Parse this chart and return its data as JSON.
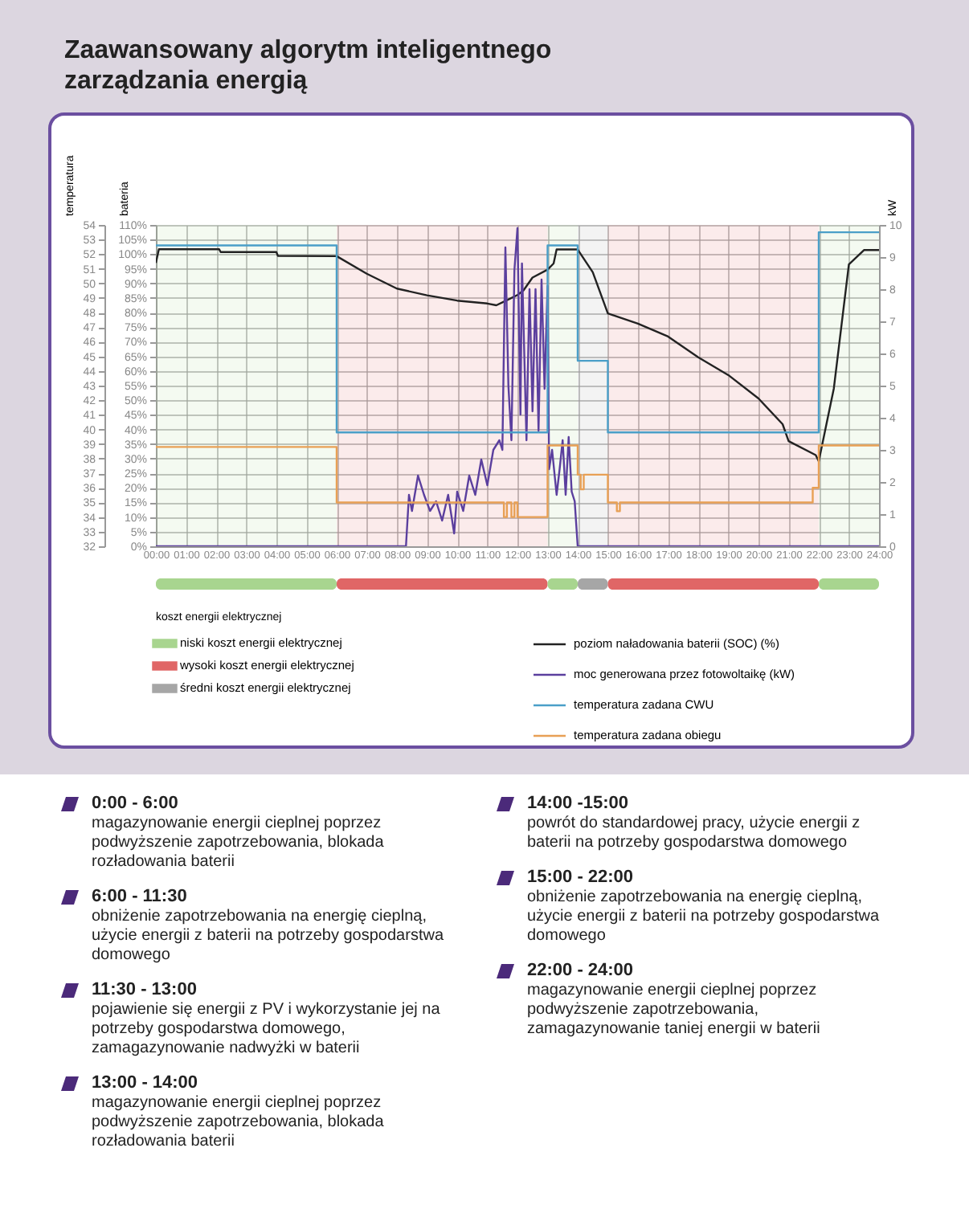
{
  "chart_data": {
    "type": "line",
    "title": "Zaawansowany algorytm inteligentnego zarządzania energią",
    "ylabel": "temperatura",
    "y2label": "bateria",
    "y3label": "kW",
    "legend_title": "koszt energii elektrycznej",
    "xlim": [
      0,
      24
    ],
    "xticks": [
      {
        "value": 0,
        "label": "00:00"
      },
      {
        "value": 1,
        "label": "01:00"
      },
      {
        "value": 2,
        "label": "02:00"
      },
      {
        "value": 3,
        "label": "03:00"
      },
      {
        "value": 4,
        "label": "04:00"
      },
      {
        "value": 5,
        "label": "05:00"
      },
      {
        "value": 6,
        "label": "06:00"
      },
      {
        "value": 7,
        "label": "07:00"
      },
      {
        "value": 8,
        "label": "08:00"
      },
      {
        "value": 9,
        "label": "09:00"
      },
      {
        "value": 10,
        "label": "10:00"
      },
      {
        "value": 11,
        "label": "11:00"
      },
      {
        "value": 12,
        "label": "12:00"
      },
      {
        "value": 13,
        "label": "13:00"
      },
      {
        "value": 14,
        "label": "14:00"
      },
      {
        "value": 15,
        "label": "15:00"
      },
      {
        "value": 16,
        "label": "16:00"
      },
      {
        "value": 17,
        "label": "17:00"
      },
      {
        "value": 18,
        "label": "18:00"
      },
      {
        "value": 19,
        "label": "19:00"
      },
      {
        "value": 20,
        "label": "20:00"
      },
      {
        "value": 21,
        "label": "21:00"
      },
      {
        "value": 22,
        "label": "22:00"
      },
      {
        "value": 23,
        "label": "23:00"
      },
      {
        "value": 24,
        "label": "24:00"
      }
    ],
    "ylim": [
      32,
      54
    ],
    "yticks": [
      32,
      33,
      34,
      35,
      36,
      37,
      38,
      39,
      40,
      41,
      42,
      43,
      44,
      45,
      46,
      47,
      48,
      49,
      50,
      51,
      52,
      53,
      54
    ],
    "y2lim": [
      0,
      110
    ],
    "y2ticks": [
      {
        "value": 0,
        "label": "0%"
      },
      {
        "value": 5,
        "label": "5%"
      },
      {
        "value": 10,
        "label": "10%"
      },
      {
        "value": 15,
        "label": "15%"
      },
      {
        "value": 20,
        "label": "20%"
      },
      {
        "value": 25,
        "label": "25%"
      },
      {
        "value": 30,
        "label": "30%"
      },
      {
        "value": 35,
        "label": "35%"
      },
      {
        "value": 40,
        "label": "40%"
      },
      {
        "value": 45,
        "label": "45%"
      },
      {
        "value": 50,
        "label": "50%"
      },
      {
        "value": 55,
        "label": "55%"
      },
      {
        "value": 60,
        "label": "60%"
      },
      {
        "value": 65,
        "label": "65%"
      },
      {
        "value": 70,
        "label": "70%"
      },
      {
        "value": 75,
        "label": "75%"
      },
      {
        "value": 80,
        "label": "80%"
      },
      {
        "value": 85,
        "label": "85%"
      },
      {
        "value": 90,
        "label": "90%"
      },
      {
        "value": 95,
        "label": "95%"
      },
      {
        "value": 100,
        "label": "100%"
      },
      {
        "value": 105,
        "label": "105%"
      },
      {
        "value": 110,
        "label": "110%"
      }
    ],
    "y3lim": [
      0,
      10
    ],
    "y3ticks": [
      0,
      1,
      2,
      3,
      4,
      5,
      6,
      7,
      8,
      9,
      10
    ],
    "grid": true,
    "legend": "bottom",
    "bands": [
      {
        "axis": "x",
        "from": 0,
        "to": 6,
        "label": "niski koszt energii elektrycznej",
        "color": "#a8d58f"
      },
      {
        "axis": "x",
        "from": 6,
        "to": 13,
        "label": "wysoki koszt energii elektrycznej",
        "color": "#e06666"
      },
      {
        "axis": "x",
        "from": 13,
        "to": 14,
        "color": "#a8d58f"
      },
      {
        "axis": "x",
        "from": 14,
        "to": 15,
        "label": "średni koszt energii elektrycznej",
        "color": "#a6a6a6"
      },
      {
        "axis": "x",
        "from": 15,
        "to": 22,
        "color": "#e06666"
      },
      {
        "axis": "x",
        "from": 22,
        "to": 24,
        "color": "#a8d58f"
      }
    ],
    "series": [
      {
        "name": "poziom naładowania baterii (SOC) (%)",
        "color": "#222222",
        "type": "line",
        "axis": "y2",
        "x": [
          0,
          0.1,
          2.1,
          2.15,
          4,
          4.05,
          6,
          7,
          8,
          9,
          10,
          11,
          11.3,
          11.6,
          12,
          12.2,
          12.5,
          13,
          13.2,
          13.3,
          14,
          14.5,
          15,
          16,
          17,
          18,
          19,
          20,
          20.8,
          21,
          21.9,
          22,
          22.5,
          23,
          23.5,
          24
        ],
        "values": [
          97,
          101.7,
          101.7,
          100.7,
          100.7,
          99.4,
          99.3,
          93.3,
          88.2,
          85.9,
          84.1,
          83.1,
          82.5,
          84,
          86,
          87.6,
          92,
          94.7,
          96.8,
          101.6,
          101.6,
          93.8,
          79.7,
          76.2,
          71.8,
          64.7,
          58.6,
          50.6,
          41.8,
          36,
          31.2,
          29.1,
          54,
          96.5,
          101.4,
          101.4
        ]
      },
      {
        "name": "moc generowana przez fotowoltaikę (kW)",
        "color": "#5b3f9e",
        "type": "line",
        "axis": "y3",
        "x": [
          0,
          8.3,
          8.4,
          8.5,
          8.7,
          8.9,
          9.1,
          9.3,
          9.5,
          9.7,
          9.9,
          10,
          10.2,
          10.4,
          10.6,
          10.8,
          11,
          11.2,
          11.4,
          11.5,
          11.6,
          11.7,
          11.8,
          11.9,
          12,
          12.1,
          12.15,
          12.3,
          12.4,
          12.5,
          12.6,
          12.7,
          12.8,
          12.9,
          13,
          13.05,
          13.15,
          13.3,
          13.4,
          13.5,
          13.6,
          13.7,
          13.8,
          13.9,
          14,
          24
        ],
        "values": [
          0,
          0,
          1.6,
          1.1,
          2.2,
          1.6,
          1.1,
          1.4,
          0.8,
          1.6,
          0.4,
          1.7,
          1.1,
          2.2,
          1.6,
          2.7,
          1.9,
          3,
          3.3,
          3,
          9.3,
          5,
          3.3,
          8.6,
          9.9,
          4.1,
          8.8,
          3.3,
          8,
          4.2,
          8,
          3.6,
          8.3,
          4.9,
          8.1,
          2.4,
          3,
          1.6,
          2.4,
          3.3,
          1.6,
          3.4,
          1.7,
          1.4,
          0,
          0
        ]
      },
      {
        "name": "temperatura zadana CWU",
        "color": "#4a9fc8",
        "type": "step",
        "x": [
          0,
          6,
          13,
          14,
          15,
          22,
          24
        ],
        "values": [
          52.6,
          39.8,
          52.6,
          44.7,
          39.8,
          53.5,
          53.5
        ]
      },
      {
        "name": "temperatura zadana obiegu",
        "color": "#e8a055",
        "type": "step",
        "x": [
          0,
          6,
          11.55,
          11.65,
          11.8,
          11.9,
          12,
          13,
          14,
          14.1,
          14.2,
          15,
          15.3,
          15.4,
          21.8,
          22,
          24
        ],
        "values": [
          38.8,
          35,
          34,
          35,
          34,
          35,
          34,
          38.9,
          36.9,
          35.9,
          36.9,
          35,
          34.4,
          35,
          36,
          38.9,
          38.9
        ]
      }
    ],
    "annotations": [
      "0:00 - 6:00",
      "magazynowanie energii cieplnej poprzez podwyższenie zapotrzebowania, blokada rozładowania baterii",
      "6:00 - 11:30",
      "obniżenie zapotrzebowania na energię cieplną, użycie energii z baterii na potrzeby gospodarstwa domowego",
      "11:30 - 13:00",
      "pojawienie się energii z PV i wykorzystanie jej na potrzeby gospodarstwa domowego, zamagazynowanie nadwyżki w baterii",
      "13:00 - 14:00",
      "magazynowanie energii cieplnej poprzez podwyższenie zapotrzebowania, blokada rozładowania baterii",
      "14:00 -15:00",
      "powrót do standardowej pracy, użycie energii z baterii na potrzeby gospodarstwa domowego",
      "15:00 - 22:00",
      "obniżenie zapotrzebowania na energię cieplną, użycie energii z baterii na potrzeby gospodarstwa domowego",
      "22:00 - 24:00",
      "magazynowanie energii cieplnej poprzez podwyższenie zapotrzebowania, zamagazynowanie taniej energii w baterii"
    ]
  }
}
